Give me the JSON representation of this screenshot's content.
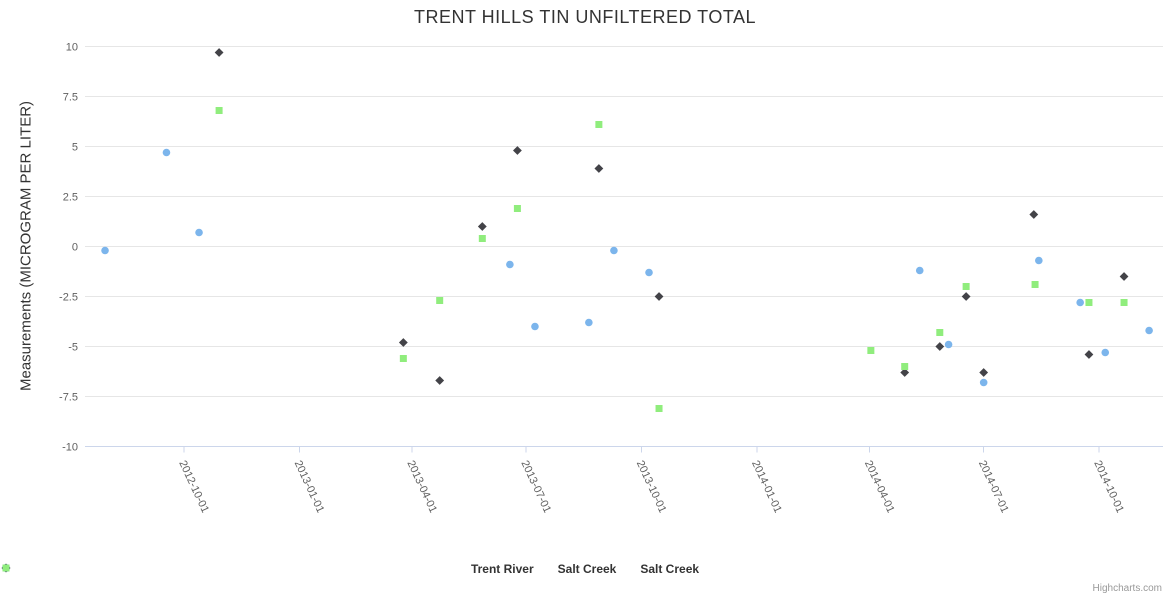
{
  "title": "TRENT HILLS TIN UNFILTERED TOTAL",
  "credits": "Highcharts.com",
  "y_axis": {
    "title": "Measurements (MICROGRAM PER LITER)",
    "tick_values": [
      10,
      7.5,
      5,
      2.5,
      0,
      -2.5,
      -5,
      -7.5,
      -10
    ],
    "tick_labels": [
      "10",
      "7.5",
      "5",
      "2.5",
      "0",
      "-2.5",
      "-5",
      "-7.5",
      "-10"
    ]
  },
  "x_axis": {
    "tick_labels": [
      "2012-10-01",
      "2013-01-01",
      "2013-04-01",
      "2013-07-01",
      "2013-10-01",
      "2014-01-01",
      "2014-04-01",
      "2014-07-01",
      "2014-10-01"
    ]
  },
  "legend": {
    "items": [
      {
        "label": "Trent River",
        "marker": "circle",
        "color": "#7cb5ec"
      },
      {
        "label": "Salt Creek",
        "marker": "diamond",
        "color": "#434348"
      },
      {
        "label": "Salt Creek",
        "marker": "square",
        "color": "#90ed7d"
      }
    ]
  },
  "colors": {
    "grid": "#e6e6e6",
    "axis_line": "#ccd6eb",
    "tick_label": "#606060",
    "title_text": "#333333",
    "legend_text": "#333333",
    "credits_text": "#999999",
    "series_blue": "#7cb5ec",
    "series_dark": "#434348",
    "series_green": "#90ed7d"
  },
  "chart_data": {
    "type": "scatter",
    "title": "TRENT HILLS TIN UNFILTERED TOTAL",
    "xlabel": "",
    "ylabel": "Measurements (MICROGRAM PER LITER)",
    "ylim": [
      -10,
      10
    ],
    "y_tick_step": 2.5,
    "x_tick_dates": [
      "2012-10-01",
      "2013-01-01",
      "2013-04-01",
      "2013-07-01",
      "2013-10-01",
      "2014-01-01",
      "2014-04-01",
      "2014-07-01",
      "2014-10-01"
    ],
    "grid": true,
    "legend_position": "bottom",
    "series": [
      {
        "name": "Trent River",
        "marker": "circle",
        "color": "#7cb5ec",
        "points": [
          [
            "2012-07-30",
            -0.2
          ],
          [
            "2012-09-17",
            4.7
          ],
          [
            "2012-10-13",
            0.7
          ],
          [
            "2013-06-18",
            -0.9
          ],
          [
            "2013-07-08",
            -4.0
          ],
          [
            "2013-08-20",
            -3.8
          ],
          [
            "2013-09-09",
            -0.2
          ],
          [
            "2013-10-07",
            -1.3
          ],
          [
            "2014-05-11",
            -1.2
          ],
          [
            "2014-06-03",
            -4.9
          ],
          [
            "2014-07-01",
            -6.8
          ],
          [
            "2014-08-14",
            -0.7
          ],
          [
            "2014-09-16",
            -2.8
          ],
          [
            "2014-10-06",
            -5.3
          ],
          [
            "2014-11-10",
            -4.2
          ]
        ]
      },
      {
        "name": "Salt Creek",
        "marker": "diamond",
        "color": "#434348",
        "points": [
          [
            "2012-10-29",
            9.7
          ],
          [
            "2013-03-25",
            -4.8
          ],
          [
            "2013-04-23",
            -6.7
          ],
          [
            "2013-05-27",
            1.0
          ],
          [
            "2013-06-24",
            4.8
          ],
          [
            "2013-08-28",
            3.9
          ],
          [
            "2013-10-15",
            -2.5
          ],
          [
            "2014-04-29",
            -6.3
          ],
          [
            "2014-05-27",
            -5.0
          ],
          [
            "2014-06-17",
            -2.5
          ],
          [
            "2014-07-01",
            -6.3
          ],
          [
            "2014-08-10",
            1.6
          ],
          [
            "2014-09-23",
            -5.4
          ],
          [
            "2014-10-21",
            -1.5
          ]
        ]
      },
      {
        "name": "Salt Creek",
        "marker": "square",
        "color": "#90ed7d",
        "points": [
          [
            "2012-10-29",
            6.8
          ],
          [
            "2013-03-25",
            -5.6
          ],
          [
            "2013-04-23",
            -2.7
          ],
          [
            "2013-05-27",
            0.4
          ],
          [
            "2013-06-24",
            1.9
          ],
          [
            "2013-08-28",
            6.1
          ],
          [
            "2013-10-15",
            -8.1
          ],
          [
            "2014-04-02",
            -5.2
          ],
          [
            "2014-04-29",
            -6.0
          ],
          [
            "2014-05-27",
            -4.3
          ],
          [
            "2014-06-17",
            -2.0
          ],
          [
            "2014-08-11",
            -1.9
          ],
          [
            "2014-09-23",
            -2.8
          ],
          [
            "2014-10-21",
            -2.8
          ]
        ]
      }
    ]
  }
}
